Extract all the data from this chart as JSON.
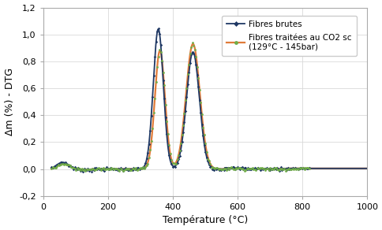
{
  "title": "",
  "xlabel": "Température (°C)",
  "ylabel": "Δm (%) - DTG",
  "xlim": [
    0,
    1000
  ],
  "ylim": [
    -0.2,
    1.2
  ],
  "yticks": [
    -0.2,
    0.0,
    0.2,
    0.4,
    0.6,
    0.8,
    1.0,
    1.2
  ],
  "xticks": [
    0,
    200,
    400,
    600,
    800,
    1000
  ],
  "legend1_label": "Fibres brutes",
  "legend2_label": "Fibres traitées au CO2 sc\n(129°C - 145bar)",
  "color_brutes": "#1f3864",
  "color_traitees": "#e07b39",
  "color_marker_brutes": "#1f3864",
  "color_marker_traitees": "#70ad47",
  "bg_color": "#ffffff",
  "grid_color": "#d9d9d9"
}
